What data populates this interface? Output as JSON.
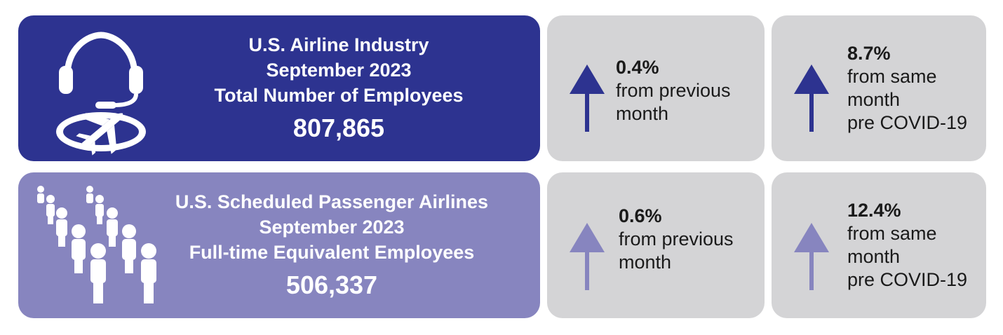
{
  "colors": {
    "dark": "#2d3390",
    "light": "#8785bf",
    "stat_bg": "#d4d4d6"
  },
  "industry": {
    "icon": "headset-airplane-icon",
    "line1": "U.S. Airline Industry",
    "line2": "September 2023",
    "line3": "Total Number of Employees",
    "value": "807,865"
  },
  "passenger": {
    "icon": "people-group-icon",
    "line1": "U.S. Scheduled Passenger Airlines",
    "line2": "September 2023",
    "line3": "Full-time Equivalent Employees",
    "value": "506,337"
  },
  "stats": {
    "industry_month": {
      "icon": "up-arrow-icon",
      "pct": "0.4%",
      "l1": "from previous",
      "l2": "month"
    },
    "industry_covid": {
      "icon": "up-arrow-icon",
      "pct": "8.7%",
      "l1": "from same",
      "l2": "month",
      "l3": "pre COVID-19"
    },
    "passenger_month": {
      "icon": "up-arrow-icon",
      "pct": "0.6%",
      "l1": "from previous",
      "l2": "month"
    },
    "passenger_covid": {
      "icon": "up-arrow-icon",
      "pct": "12.4%",
      "l1": "from same",
      "l2": "month",
      "l3": "pre COVID-19"
    }
  }
}
